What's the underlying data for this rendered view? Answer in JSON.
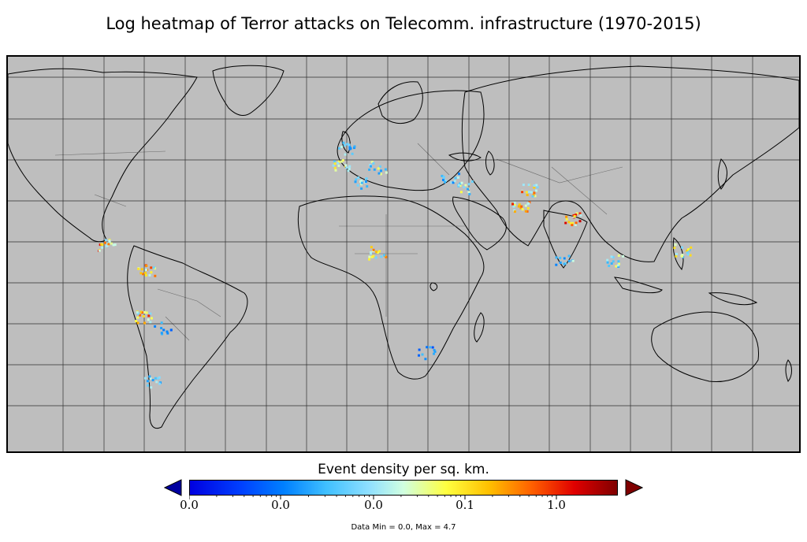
{
  "title": "Log heatmap of Terror attacks on Telecomm. infrastructure (1970-2015)",
  "colorbar": {
    "label": "Event density per sq. km.",
    "tick_labels": [
      "0.0",
      "0.0",
      "0.0",
      "0.1",
      "1.0"
    ],
    "colormap": "jet",
    "under_color": "#0000a0",
    "over_color": "#7f0000",
    "extend": "both"
  },
  "footnote": "Data Min = 0.0, Max = 4.7",
  "map": {
    "background_color": "#bebebe",
    "coastline_color": "#000000",
    "border_color": "#6e6e6e",
    "gridline_color": "#000000",
    "hotspots": [
      {
        "region": "Central America",
        "level": 0.9
      },
      {
        "region": "Colombia",
        "level": 0.85
      },
      {
        "region": "Peru",
        "level": 0.9
      },
      {
        "region": "Bolivia",
        "level": 0.3
      },
      {
        "region": "Chile",
        "level": 0.6
      },
      {
        "region": "Spain",
        "level": 0.7
      },
      {
        "region": "France",
        "level": 0.5
      },
      {
        "region": "Italy",
        "level": 0.6
      },
      {
        "region": "Algeria",
        "level": 0.55
      },
      {
        "region": "Nigeria",
        "level": 0.8
      },
      {
        "region": "Turkey",
        "level": 0.5
      },
      {
        "region": "Iraq",
        "level": 0.6
      },
      {
        "region": "Afghanistan",
        "level": 0.85
      },
      {
        "region": "Pakistan",
        "level": 0.9
      },
      {
        "region": "India",
        "level": 0.95
      },
      {
        "region": "Sri Lanka",
        "level": 0.5
      },
      {
        "region": "Thailand",
        "level": 0.6
      },
      {
        "region": "Philippines",
        "level": 0.7
      },
      {
        "region": "South Africa",
        "level": 0.3
      }
    ]
  }
}
